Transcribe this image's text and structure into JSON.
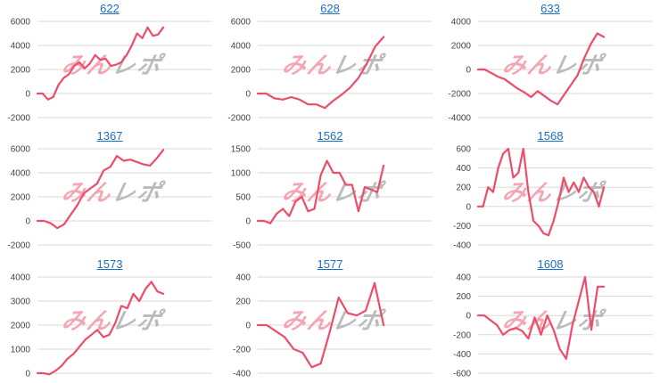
{
  "colors": {
    "line": "#ee4d6a",
    "grid": "#d9d9d9",
    "title": "#1a6fc2",
    "watermark_pink": "#f4a5b1",
    "watermark_gray": "#bbbbbb"
  },
  "watermark": "みんレポ",
  "chart_data": [
    {
      "type": "line",
      "title": "622",
      "yticks": [
        -2000,
        0,
        2000,
        4000,
        6000
      ],
      "ylim": [
        -2000,
        6000
      ],
      "values": [
        0,
        0,
        -500,
        -300,
        700,
        1300,
        1600,
        2300,
        2600,
        2100,
        2500,
        3200,
        2800,
        2900,
        2300,
        2400,
        2600,
        3200,
        4000,
        5000,
        4600,
        5500,
        4800,
        4900,
        5500
      ]
    },
    {
      "type": "line",
      "title": "628",
      "yticks": [
        -2000,
        0,
        2000,
        4000,
        6000
      ],
      "ylim": [
        -2000,
        6000
      ],
      "values": [
        0,
        0,
        -400,
        -500,
        -300,
        -500,
        -900,
        -900,
        -1200,
        -600,
        -100,
        500,
        1300,
        2500,
        3900,
        4700
      ]
    },
    {
      "type": "line",
      "title": "633",
      "yticks": [
        -4000,
        -2000,
        0,
        2000,
        4000
      ],
      "ylim": [
        -4000,
        4000
      ],
      "values": [
        0,
        0,
        -300,
        -600,
        -800,
        -1200,
        -1600,
        -1900,
        -2300,
        -1800,
        -2200,
        -2600,
        -2900,
        -2100,
        -1300,
        -500,
        900,
        2100,
        3000,
        2700
      ]
    },
    {
      "type": "line",
      "title": "1367",
      "yticks": [
        -2000,
        0,
        2000,
        4000,
        6000
      ],
      "ylim": [
        -2000,
        6000
      ],
      "values": [
        0,
        0,
        -200,
        -600,
        -300,
        500,
        1300,
        2300,
        2700,
        3100,
        4200,
        4500,
        5400,
        5000,
        5100,
        4900,
        4700,
        4600,
        5200,
        5900
      ]
    },
    {
      "type": "line",
      "title": "1562",
      "yticks": [
        -500,
        0,
        500,
        1000,
        1500
      ],
      "ylim": [
        -500,
        1500
      ],
      "values": [
        0,
        0,
        -50,
        150,
        250,
        100,
        400,
        500,
        200,
        250,
        950,
        1250,
        1000,
        1000,
        750,
        750,
        200,
        700,
        650,
        600,
        1150
      ]
    },
    {
      "type": "line",
      "title": "1568",
      "yticks": [
        -400,
        -200,
        0,
        200,
        400,
        600
      ],
      "ylim": [
        -400,
        600
      ],
      "values": [
        0,
        0,
        200,
        150,
        400,
        550,
        600,
        300,
        350,
        600,
        150,
        -150,
        -200,
        -280,
        -300,
        -150,
        50,
        300,
        150,
        250,
        150,
        300,
        200,
        150,
        0,
        200
      ]
    },
    {
      "type": "line",
      "title": "1573",
      "yticks": [
        0,
        1000,
        2000,
        3000,
        4000
      ],
      "ylim": [
        0,
        4000
      ],
      "values": [
        0,
        0,
        -50,
        100,
        300,
        600,
        800,
        1100,
        1400,
        1600,
        1800,
        1500,
        1600,
        2100,
        2800,
        2700,
        3300,
        3000,
        3500,
        3800,
        3400,
        3300
      ]
    },
    {
      "type": "line",
      "title": "1577",
      "yticks": [
        -400,
        -200,
        0,
        200,
        400
      ],
      "ylim": [
        -400,
        400
      ],
      "values": [
        0,
        0,
        -50,
        -100,
        -200,
        -230,
        -350,
        -320,
        -60,
        230,
        100,
        80,
        120,
        350,
        0
      ]
    },
    {
      "type": "line",
      "title": "1608",
      "yticks": [
        -600,
        -400,
        -200,
        0,
        200,
        400
      ],
      "ylim": [
        -600,
        400
      ],
      "values": [
        0,
        0,
        -50,
        -100,
        -200,
        -150,
        -130,
        -160,
        -240,
        -20,
        -200,
        0,
        -150,
        -350,
        -450,
        -100,
        150,
        400,
        -150,
        300,
        300
      ]
    }
  ]
}
